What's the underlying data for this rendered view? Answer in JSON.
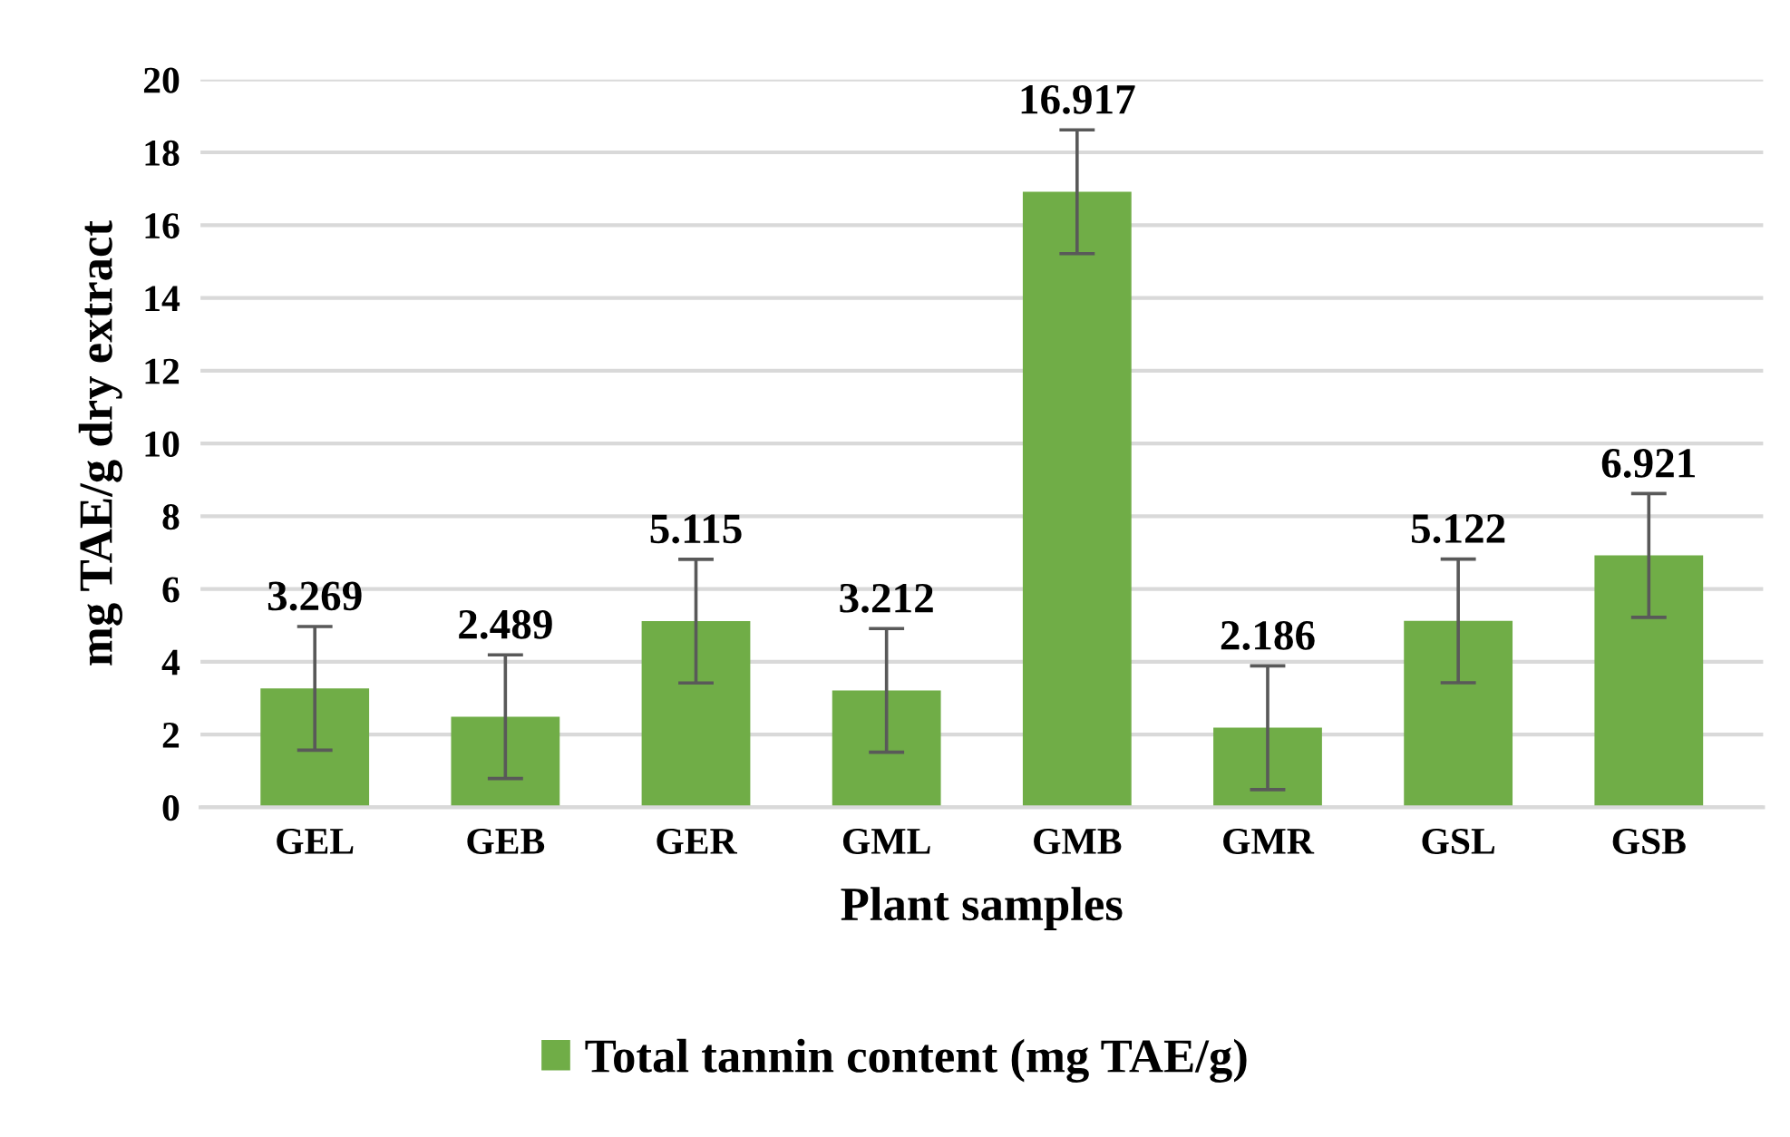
{
  "chart_data": {
    "type": "bar",
    "xlabel": "Plant samples",
    "ylabel": "mg TAE/g dry extract",
    "categories": [
      "GEL",
      "GEB",
      "GER",
      "GML",
      "GMB",
      "GMR",
      "GSL",
      "GSB"
    ],
    "series": [
      {
        "name": "Total tannin content (mg TAE/g)",
        "color": "#70ad47",
        "values": [
          3.269,
          2.489,
          5.115,
          3.212,
          16.917,
          2.186,
          5.122,
          6.921
        ],
        "errors": [
          1.7,
          1.7,
          1.7,
          1.7,
          1.7,
          1.7,
          1.7,
          1.7
        ]
      }
    ],
    "data_labels": true,
    "ylim": [
      0,
      20
    ],
    "yticks": [
      0,
      2,
      4,
      6,
      8,
      10,
      12,
      14,
      16,
      18,
      20
    ],
    "grid": "y",
    "legend": "bottom"
  }
}
